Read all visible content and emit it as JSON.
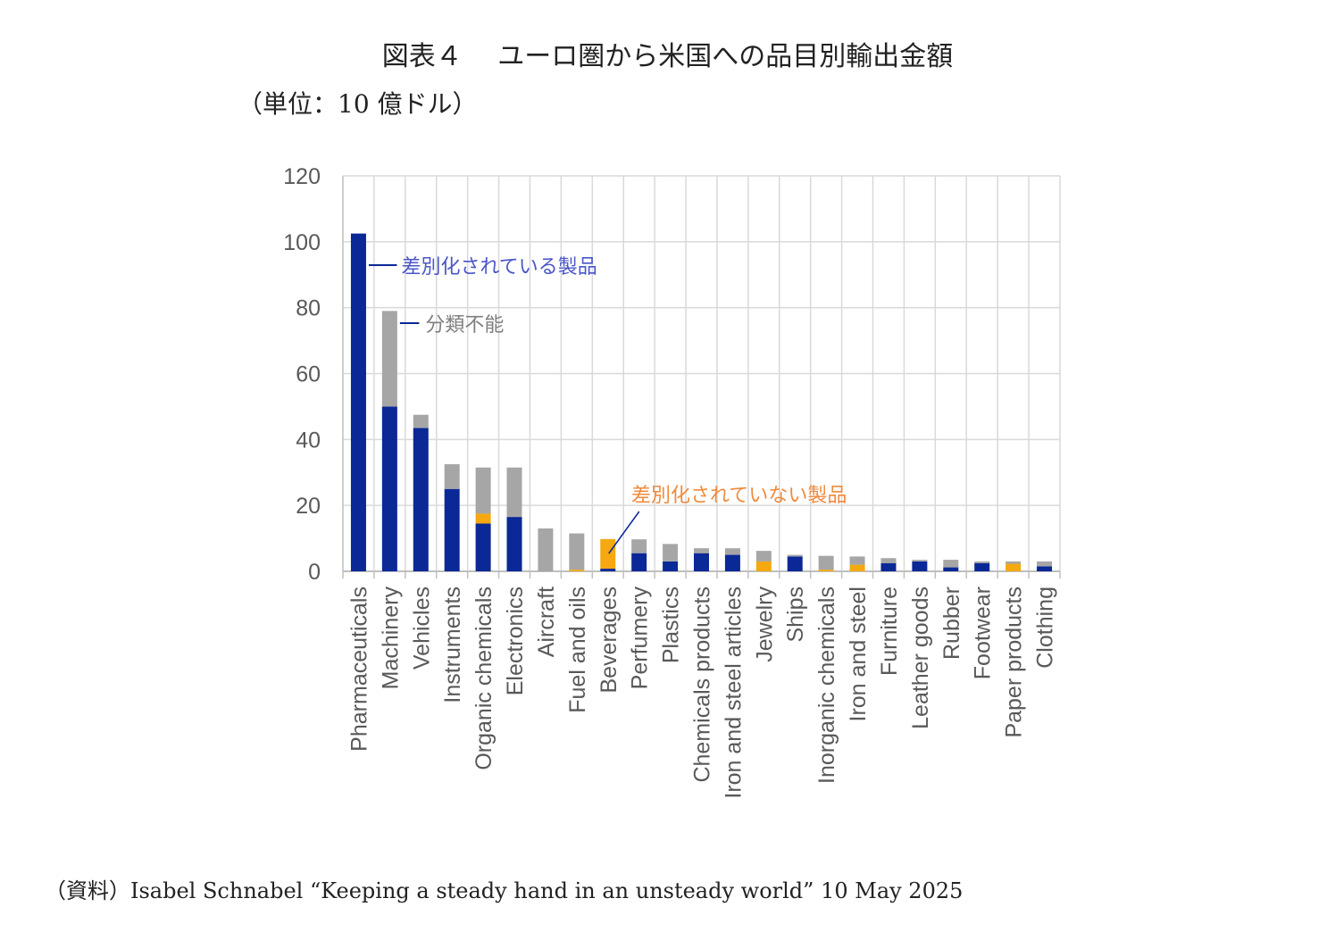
{
  "title": "図表４　 ユーロ圏から米国への品目別輸出金額",
  "unit_label": "（単位：10 億ドル）",
  "source": "（資料）Isabel Schnabel “Keeping a steady hand in an unsteady world” 10 May 2025",
  "colors": {
    "differentiated": "#0a2896",
    "unclassified": "#a6a6a6",
    "non_differentiated": "#f5a80f",
    "grid": "#d9d9d9",
    "label_blue": "#4a56c8",
    "label_gray": "#7f7f7f",
    "label_orange": "#f08a3c"
  },
  "chart_data": {
    "type": "bar",
    "stacked": true,
    "title": "図表４　 ユーロ圏から米国への品目別輸出金額",
    "ylabel": "（単位：10 億ドル）",
    "xlabel": "",
    "ylim": [
      0,
      120
    ],
    "yticks": [
      0,
      20,
      40,
      60,
      80,
      100,
      120
    ],
    "grid": true,
    "categories": [
      "Pharmaceuticals",
      "Machinery",
      "Vehicles",
      "Instruments",
      "Organic chemicals",
      "Electronics",
      "Aircraft",
      "Fuel and oils",
      "Beverages",
      "Perfumery",
      "Plastics",
      "Chemicals products",
      "Iron and steel articles",
      "Jewelry",
      "Ships",
      "Inorganic chemicals",
      "Iron and steel",
      "Furniture",
      "Leather goods",
      "Rubber",
      "Footwear",
      "Paper products",
      "Clothing"
    ],
    "series": [
      {
        "name": "差別化されている製品",
        "color": "#0a2896",
        "values": [
          102.5,
          50,
          43.5,
          25,
          14.5,
          16.5,
          0,
          0,
          0.8,
          5.5,
          3,
          5.5,
          5,
          0,
          4.5,
          0,
          0,
          2.5,
          3,
          1.2,
          2.5,
          0,
          1.5
        ]
      },
      {
        "name": "差別化されていない製品",
        "color": "#f5a80f",
        "values": [
          0,
          0,
          0,
          0,
          3,
          0,
          0,
          0.5,
          9,
          0,
          0,
          0,
          0,
          3,
          0,
          0.5,
          2,
          0,
          0,
          0,
          0,
          2.3,
          0
        ]
      },
      {
        "name": "分類不能",
        "color": "#a6a6a6",
        "values": [
          0,
          29,
          4,
          7.5,
          14,
          15,
          13,
          11,
          0,
          4.2,
          5.3,
          1.5,
          2,
          3.2,
          0.5,
          4.2,
          2.5,
          1.5,
          0.5,
          2.3,
          0.5,
          0.7,
          1.5
        ]
      }
    ],
    "annotations": [
      {
        "text": "差別化されている製品",
        "series": "差別化されている製品"
      },
      {
        "text": "分類不能",
        "series": "分類不能"
      },
      {
        "text": "差別化されていない製品",
        "series": "差別化されていない製品"
      }
    ]
  }
}
